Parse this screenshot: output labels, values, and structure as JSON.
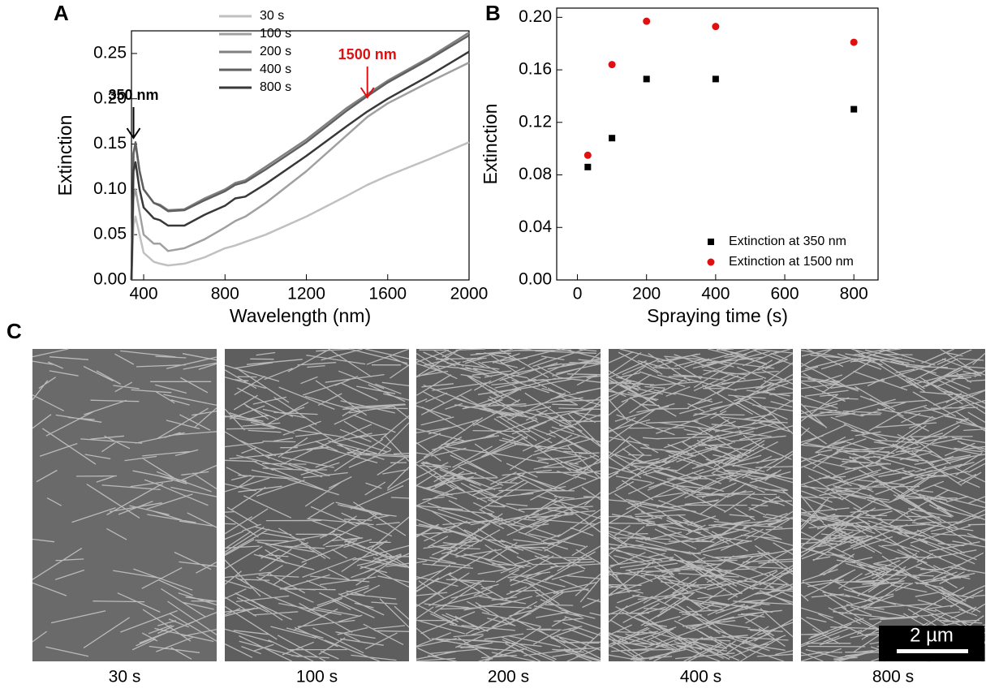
{
  "panel_labels": [
    "A",
    "B",
    "C"
  ],
  "chart_data": [
    {
      "type": "line",
      "x_label": "Wavelength (nm)",
      "y_label": "Extinction",
      "x": [
        340,
        350,
        360,
        380,
        400,
        450,
        480,
        520,
        600,
        700,
        800,
        850,
        900,
        1000,
        1200,
        1400,
        1500,
        1600,
        1800,
        2000
      ],
      "series": [
        {
          "name": "30 s",
          "color": "#c0c0c0",
          "values": [
            0.0,
            0.06,
            0.07,
            0.05,
            0.03,
            0.02,
            0.018,
            0.016,
            0.018,
            0.025,
            0.035,
            0.038,
            0.042,
            0.05,
            0.07,
            0.093,
            0.105,
            0.115,
            0.133,
            0.152
          ]
        },
        {
          "name": "100 s",
          "color": "#a0a0a0",
          "values": [
            0.0,
            0.09,
            0.1,
            0.075,
            0.05,
            0.04,
            0.04,
            0.032,
            0.035,
            0.045,
            0.058,
            0.065,
            0.07,
            0.085,
            0.12,
            0.16,
            0.18,
            0.195,
            0.218,
            0.24
          ]
        },
        {
          "name": "200 s",
          "color": "#808080",
          "values": [
            0.0,
            0.14,
            0.15,
            0.12,
            0.1,
            0.085,
            0.083,
            0.077,
            0.078,
            0.09,
            0.1,
            0.107,
            0.11,
            0.125,
            0.155,
            0.19,
            0.205,
            0.22,
            0.245,
            0.273
          ]
        },
        {
          "name": "400 s",
          "color": "#606060",
          "values": [
            0.0,
            0.14,
            0.152,
            0.12,
            0.1,
            0.085,
            0.082,
            0.076,
            0.077,
            0.088,
            0.098,
            0.105,
            0.108,
            0.122,
            0.152,
            0.187,
            0.203,
            0.218,
            0.243,
            0.27
          ]
        },
        {
          "name": "800 s",
          "color": "#383838",
          "values": [
            0.0,
            0.12,
            0.13,
            0.1,
            0.08,
            0.068,
            0.066,
            0.06,
            0.06,
            0.072,
            0.082,
            0.09,
            0.092,
            0.106,
            0.137,
            0.17,
            0.186,
            0.2,
            0.225,
            0.252
          ]
        }
      ],
      "xlim": [
        340,
        2000
      ],
      "ylim": [
        0,
        0.275
      ],
      "xticks": [
        400,
        800,
        1200,
        1600,
        2000
      ],
      "yticks": [
        {
          "value": 0,
          "label": "0.00"
        },
        {
          "value": 0.05,
          "label": "0.05"
        },
        {
          "value": 0.1,
          "label": "0.10"
        },
        {
          "value": 0.15,
          "label": "0.15"
        },
        {
          "value": 0.2,
          "label": "0.20"
        },
        {
          "value": 0.25,
          "label": "0.25"
        }
      ],
      "annotations": [
        {
          "text": "350 nm",
          "x": 350,
          "color": "#000000"
        },
        {
          "text": "1500 nm",
          "x": 1500,
          "color": "#e01010"
        }
      ]
    },
    {
      "type": "scatter",
      "x_label": "Spraying time (s)",
      "y_label": "Extinction",
      "x": [
        30,
        100,
        200,
        400,
        800
      ],
      "series": [
        {
          "name": "Extinction at 350 nm",
          "color": "#000000",
          "marker": "square",
          "values": [
            0.086,
            0.108,
            0.153,
            0.153,
            0.13
          ]
        },
        {
          "name": "Extinction at 1500 nm",
          "color": "#e01010",
          "marker": "circle",
          "values": [
            0.095,
            0.164,
            0.197,
            0.193,
            0.181
          ]
        }
      ],
      "xlim": [
        -60,
        870
      ],
      "ylim": [
        0,
        0.207
      ],
      "xticks": [
        0,
        200,
        400,
        600,
        800
      ],
      "yticks": [
        {
          "value": 0,
          "label": "0.00"
        },
        {
          "value": 0.04,
          "label": "0.04"
        },
        {
          "value": 0.08,
          "label": "0.08"
        },
        {
          "value": 0.12,
          "label": "0.12"
        },
        {
          "value": 0.16,
          "label": "0.16"
        },
        {
          "value": 0.2,
          "label": "0.20"
        }
      ]
    }
  ],
  "images": {
    "captions": [
      "30 s",
      "100 s",
      "200 s",
      "400 s",
      "800 s"
    ],
    "scale_bar": "2 µm"
  }
}
